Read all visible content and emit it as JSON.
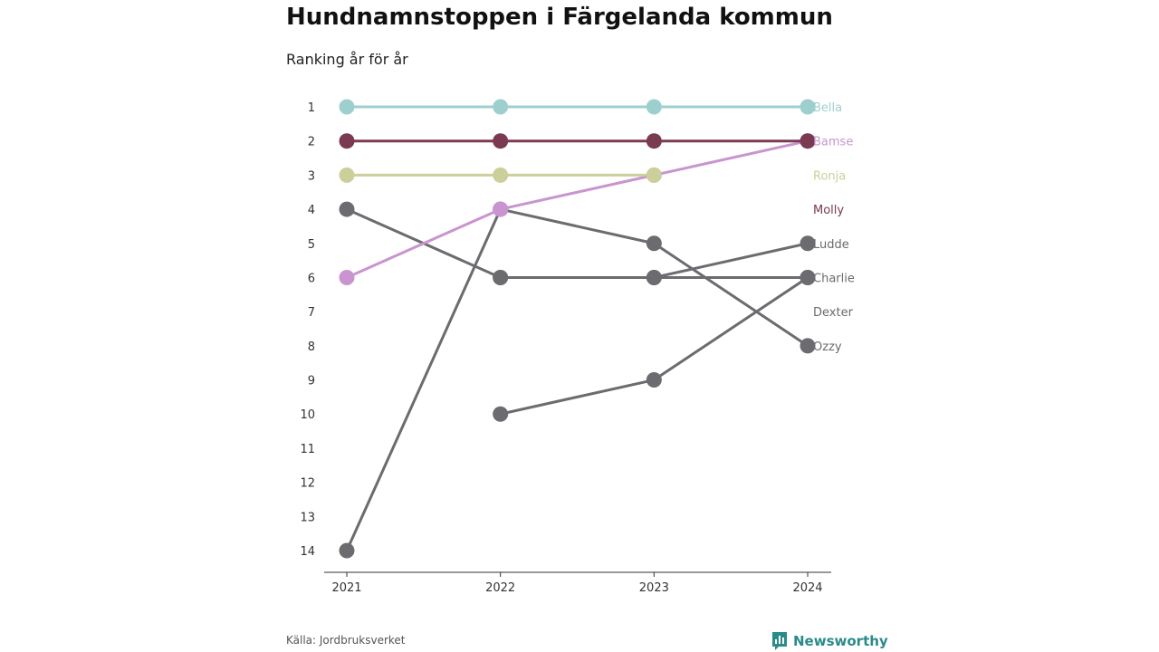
{
  "chart_data": {
    "type": "line",
    "title": "Hundnamnstoppen i Färgelanda kommun",
    "subtitle": "Ranking år för år",
    "x": [
      "2021",
      "2022",
      "2023",
      "2024"
    ],
    "y_ticks": [
      "1",
      "2",
      "3",
      "4",
      "5",
      "6",
      "7",
      "8",
      "9",
      "10",
      "11",
      "12",
      "13",
      "14"
    ],
    "ylim": [
      1,
      14
    ],
    "y_inverted": true,
    "series": [
      {
        "name": "Bella",
        "color": "#9ecfcf",
        "values": [
          1,
          1,
          1,
          1
        ]
      },
      {
        "name": "Bamse",
        "color": "#c994cf",
        "values": [
          6,
          4,
          3,
          2
        ]
      },
      {
        "name": "Ronja",
        "color": "#cccf9a",
        "values": [
          3,
          3,
          3,
          null
        ]
      },
      {
        "name": "Molly",
        "color": "#7a3a52",
        "values": [
          2,
          2,
          2,
          2
        ]
      },
      {
        "name": "Ludde",
        "color": "#6b6b70",
        "values": [
          14,
          4,
          5,
          8
        ]
      },
      {
        "name": "Charlie",
        "color": "#6b6b70",
        "values": [
          4,
          6,
          6,
          6
        ]
      },
      {
        "name": "Dexter",
        "color": "#6b6b70",
        "values": [
          null,
          6,
          6,
          5
        ]
      },
      {
        "name": "Ozzy",
        "color": "#6b6b70",
        "values": [
          null,
          10,
          9,
          6
        ]
      }
    ],
    "end_labels": [
      {
        "name": "Bella",
        "color": "#9ecfcf",
        "rank": 1
      },
      {
        "name": "Bamse",
        "color": "#c994cf",
        "rank": 2
      },
      {
        "name": "Ronja",
        "color": "#cccf9a",
        "rank": 3
      },
      {
        "name": "Molly",
        "color": "#7a3a52",
        "rank": 4
      },
      {
        "name": "Ludde",
        "color": "#6b6b70",
        "rank": 5
      },
      {
        "name": "Charlie",
        "color": "#6b6b70",
        "rank": 6
      },
      {
        "name": "Dexter",
        "color": "#6b6b70",
        "rank": 7
      },
      {
        "name": "Ozzy",
        "color": "#6b6b70",
        "rank": 8
      }
    ]
  },
  "source": "Källa: Jordbruksverket",
  "brand": {
    "name": "Newsworthy",
    "icon": "bar-chart-pin-icon",
    "color": "#2b8a8a"
  }
}
